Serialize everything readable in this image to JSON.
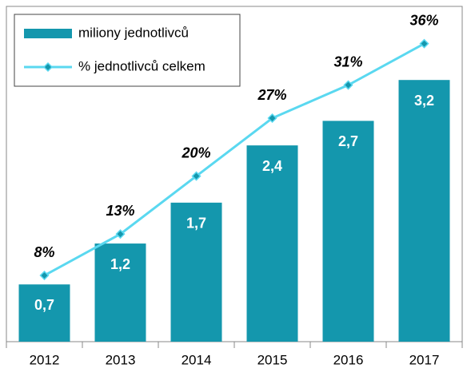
{
  "chart_data": {
    "type": "bar+line",
    "categories": [
      "2012",
      "2013",
      "2014",
      "2015",
      "2016",
      "2017"
    ],
    "series": [
      {
        "name": "miliony jednotlivců",
        "type": "bar",
        "color": "#1497ad",
        "values": [
          0.7,
          1.2,
          1.7,
          2.4,
          2.7,
          3.2
        ],
        "value_labels": [
          "0,7",
          "1,2",
          "1,7",
          "2,4",
          "2,7",
          "3,2"
        ]
      },
      {
        "name": "% jednotlivců celkem",
        "type": "line",
        "axis": "y2",
        "color": "#5ad8f0",
        "marker_color": "#1497ad",
        "values": [
          8,
          13,
          20,
          27,
          31,
          36
        ],
        "value_labels": [
          "8%",
          "13%",
          "20%",
          "27%",
          "31%",
          "36%"
        ]
      }
    ],
    "ylim": [
      0,
      4.1
    ],
    "y2lim": [
      0,
      40.5
    ],
    "legend": "upper left"
  }
}
